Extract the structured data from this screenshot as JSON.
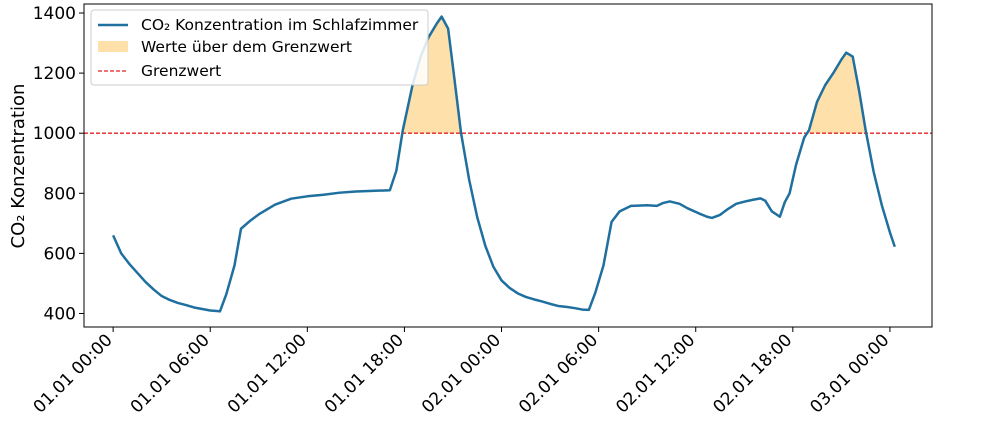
{
  "chart_data": {
    "type": "line",
    "title": "",
    "xlabel": "",
    "ylabel": "CO₂ Konzentration",
    "x_ticks": [
      {
        "hour": 0,
        "label": "01.01 00:00"
      },
      {
        "hour": 6,
        "label": "01.01 06:00"
      },
      {
        "hour": 12,
        "label": "01.01 12:00"
      },
      {
        "hour": 18,
        "label": "01.01 18:00"
      },
      {
        "hour": 24,
        "label": "02.01 00:00"
      },
      {
        "hour": 30,
        "label": "02.01 06:00"
      },
      {
        "hour": 36,
        "label": "02.01 12:00"
      },
      {
        "hour": 42,
        "label": "02.01 18:00"
      },
      {
        "hour": 48,
        "label": "03.01 00:00"
      }
    ],
    "y_ticks": [
      400,
      600,
      800,
      1000,
      1200,
      1400
    ],
    "xlim": [
      -1.8,
      50.6
    ],
    "ylim": [
      355,
      1430
    ],
    "threshold": 1000,
    "legend_position": "top-left",
    "series": [
      {
        "name": "CO₂ Konzentration im Schlafzimmer",
        "color": "#1f6f9f",
        "fill_color": "#fde0aa",
        "points": [
          [
            0,
            660
          ],
          [
            0.5,
            600
          ],
          [
            1,
            565
          ],
          [
            1.5,
            535
          ],
          [
            2,
            505
          ],
          [
            2.5,
            480
          ],
          [
            3,
            458
          ],
          [
            3.5,
            445
          ],
          [
            4,
            435
          ],
          [
            4.5,
            428
          ],
          [
            5,
            420
          ],
          [
            5.5,
            415
          ],
          [
            6,
            410
          ],
          [
            6.5,
            408
          ],
          [
            6.6,
            407
          ],
          [
            7,
            465
          ],
          [
            7.5,
            560
          ],
          [
            7.9,
            682
          ],
          [
            8.5,
            710
          ],
          [
            9,
            730
          ],
          [
            10,
            762
          ],
          [
            11,
            782
          ],
          [
            12,
            790
          ],
          [
            13,
            795
          ],
          [
            14,
            802
          ],
          [
            15,
            806
          ],
          [
            16,
            808
          ],
          [
            17.1,
            810
          ],
          [
            17.5,
            875
          ],
          [
            17.9,
            1010
          ],
          [
            18.5,
            1160
          ],
          [
            19,
            1255
          ],
          [
            19.5,
            1320
          ],
          [
            20,
            1365
          ],
          [
            20.3,
            1388
          ],
          [
            20.7,
            1348
          ],
          [
            21,
            1220
          ],
          [
            21.5,
            1000
          ],
          [
            22,
            845
          ],
          [
            22.5,
            720
          ],
          [
            23,
            625
          ],
          [
            23.5,
            555
          ],
          [
            24,
            510
          ],
          [
            24.5,
            485
          ],
          [
            25,
            467
          ],
          [
            25.5,
            455
          ],
          [
            26,
            447
          ],
          [
            26.5,
            440
          ],
          [
            27,
            432
          ],
          [
            27.5,
            425
          ],
          [
            28,
            422
          ],
          [
            28.5,
            418
          ],
          [
            29,
            413
          ],
          [
            29.4,
            412
          ],
          [
            29.8,
            470
          ],
          [
            30.3,
            560
          ],
          [
            30.8,
            705
          ],
          [
            31.3,
            740
          ],
          [
            32,
            758
          ],
          [
            33,
            760
          ],
          [
            33.6,
            758
          ],
          [
            34,
            768
          ],
          [
            34.4,
            773
          ],
          [
            35,
            765
          ],
          [
            35.5,
            750
          ],
          [
            36.2,
            733
          ],
          [
            36.7,
            722
          ],
          [
            37,
            718
          ],
          [
            37.5,
            728
          ],
          [
            38,
            748
          ],
          [
            38.5,
            765
          ],
          [
            39,
            772
          ],
          [
            39.5,
            778
          ],
          [
            40,
            783
          ],
          [
            40.3,
            775
          ],
          [
            40.7,
            740
          ],
          [
            41.2,
            722
          ],
          [
            41.5,
            770
          ],
          [
            41.8,
            800
          ],
          [
            42.2,
            895
          ],
          [
            42.7,
            985
          ],
          [
            43,
            1010
          ],
          [
            43.5,
            1105
          ],
          [
            44,
            1160
          ],
          [
            44.5,
            1200
          ],
          [
            45,
            1245
          ],
          [
            45.3,
            1268
          ],
          [
            45.7,
            1255
          ],
          [
            46.1,
            1140
          ],
          [
            46.5,
            1010
          ],
          [
            47,
            870
          ],
          [
            47.5,
            760
          ],
          [
            48,
            670
          ],
          [
            48.3,
            622
          ]
        ]
      }
    ],
    "fill_series_name": "Werte über dem Grenzwert",
    "threshold_series_name": "Grenzwert",
    "threshold_color": "#e02020"
  }
}
